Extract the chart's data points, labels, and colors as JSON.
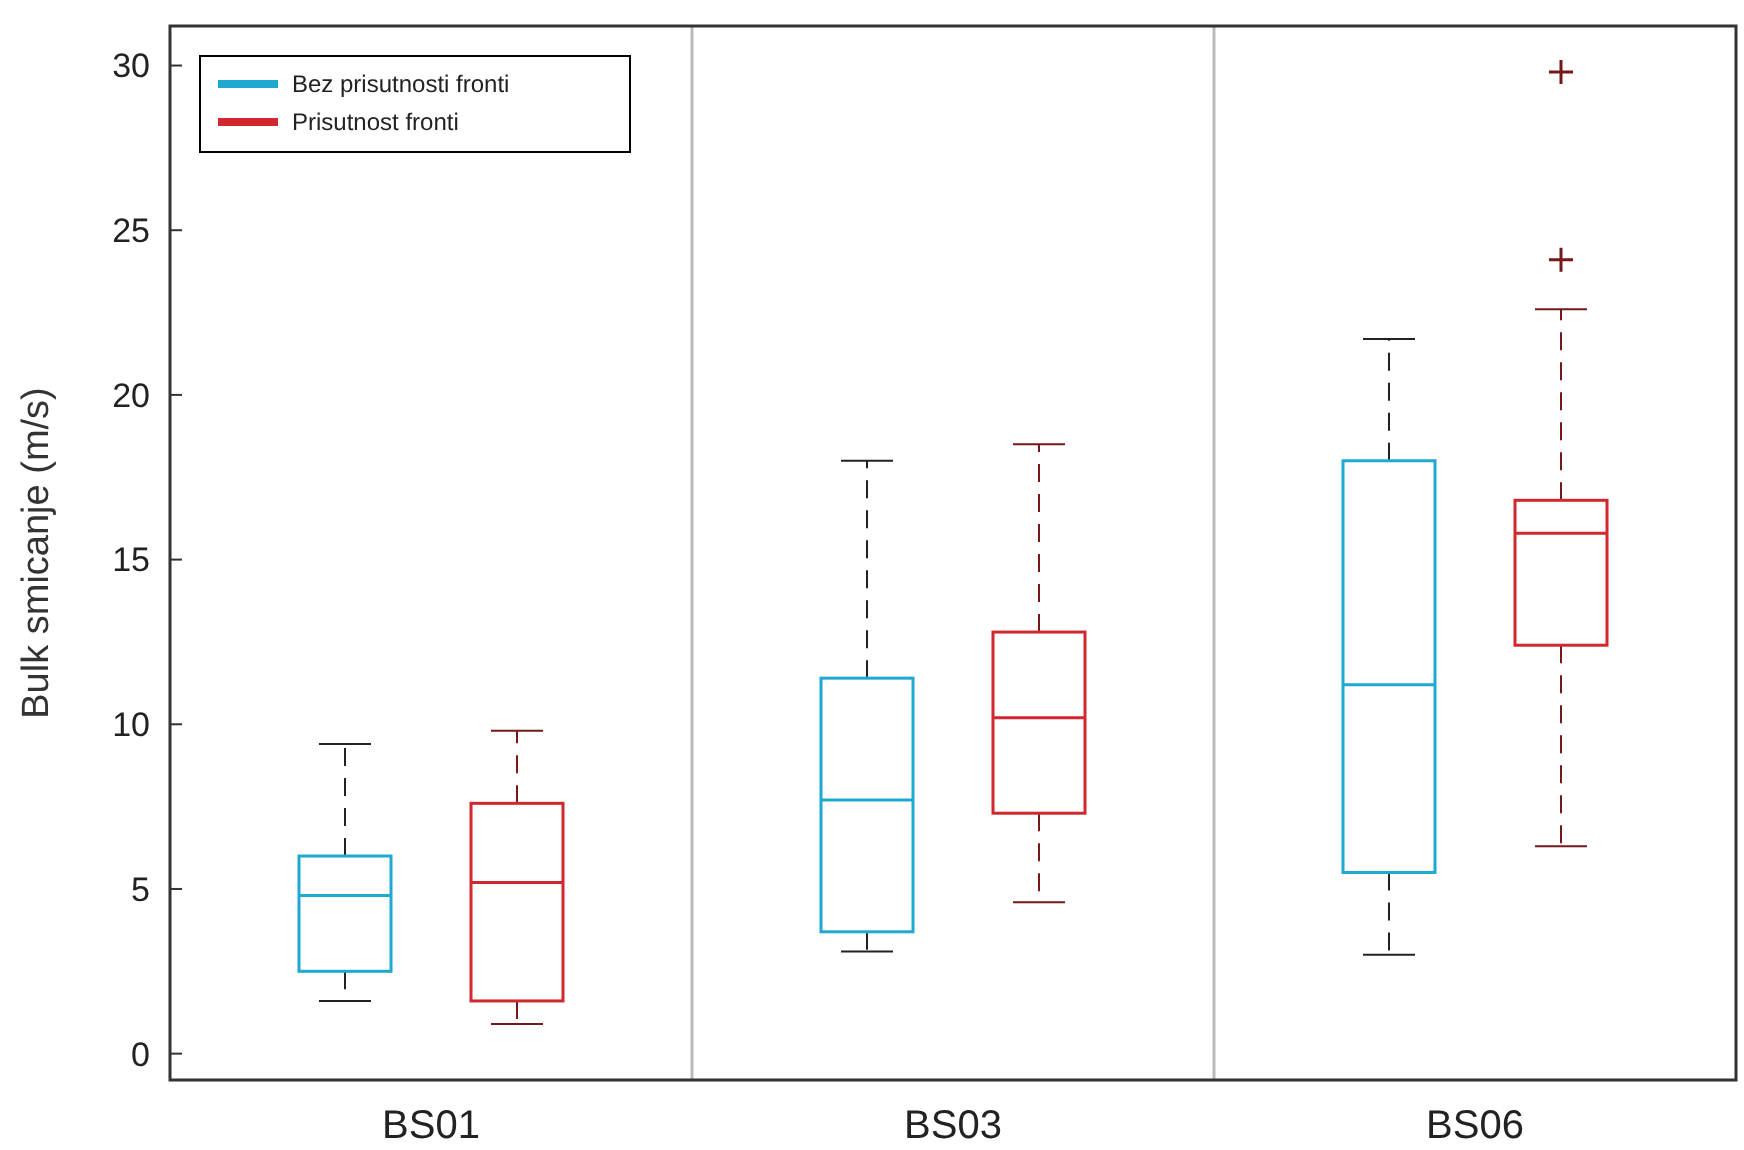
{
  "chart_data": {
    "type": "box",
    "ylabel": "Bulk smicanje (m/s)",
    "categories": [
      "BS01",
      "BS03",
      "BS06"
    ],
    "ylim": [
      -0.8,
      31.2
    ],
    "yticks": [
      0,
      5,
      10,
      15,
      20,
      25,
      30
    ],
    "legend": "top left",
    "grid": false,
    "series": [
      {
        "name": "Bez prisutnosti fronti",
        "color": "#1fa8d0",
        "boxes": [
          {
            "low": 1.6,
            "q1": 2.5,
            "median": 4.8,
            "q3": 6.0,
            "high": 9.4
          },
          {
            "low": 3.1,
            "q1": 3.7,
            "median": 7.7,
            "q3": 11.4,
            "high": 18.0
          },
          {
            "low": 3.0,
            "q1": 5.5,
            "median": 11.2,
            "q3": 18.0,
            "high": 21.7
          }
        ]
      },
      {
        "name": "Prisutnost fronti",
        "color": "#d0282e",
        "boxes": [
          {
            "low": 0.9,
            "q1": 1.6,
            "median": 5.2,
            "q3": 7.6,
            "high": 9.8
          },
          {
            "low": 4.6,
            "q1": 7.3,
            "median": 10.2,
            "q3": 12.8,
            "high": 18.5
          },
          {
            "low": 6.3,
            "q1": 12.4,
            "median": 15.8,
            "q3": 16.8,
            "high": 22.6,
            "outliers": [
              24.1,
              29.8
            ]
          }
        ]
      }
    ]
  }
}
